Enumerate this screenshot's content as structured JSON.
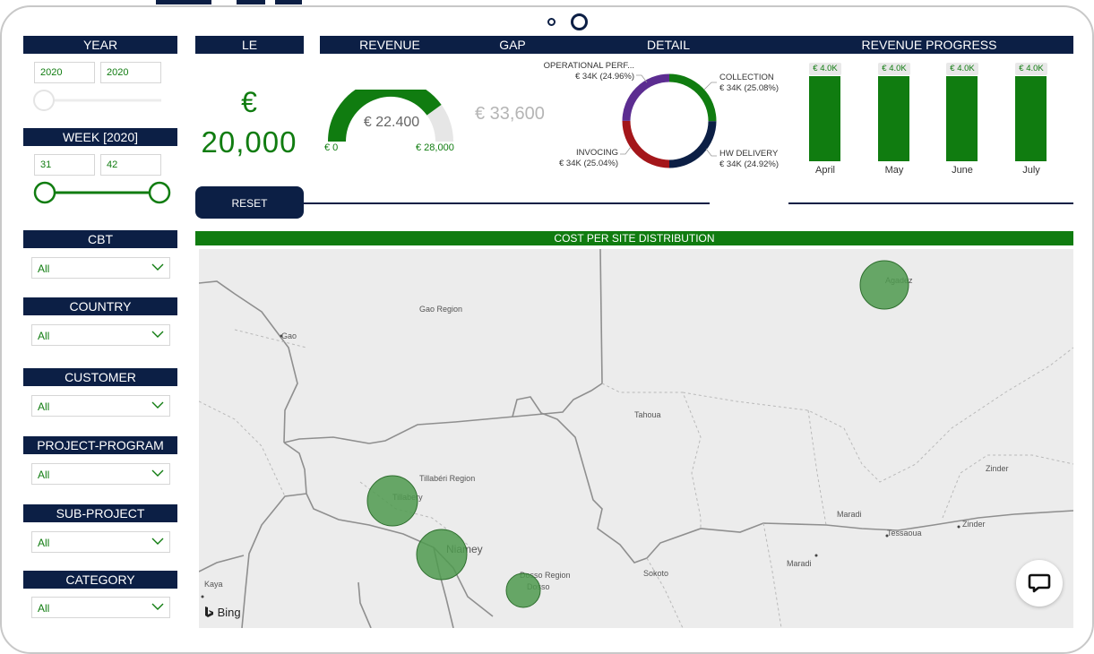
{
  "filters": {
    "year": {
      "title": "YEAR",
      "from": "2020",
      "to": "2020"
    },
    "week": {
      "title": "WEEK [2020]",
      "from": "31",
      "to": "42"
    },
    "reset_label": "RESET",
    "slicers": [
      {
        "title": "CBT",
        "value": "All"
      },
      {
        "title": "COUNTRY",
        "value": "All"
      },
      {
        "title": "CUSTOMER",
        "value": "All"
      },
      {
        "title": "PROJECT-PROGRAM",
        "value": "All"
      },
      {
        "title": "SUB-PROJECT",
        "value": "All"
      },
      {
        "title": "CATEGORY",
        "value": "All"
      }
    ]
  },
  "kpis": {
    "le": {
      "title": "LE",
      "symbol": "€",
      "value": "20,000"
    },
    "revenue": {
      "title": "REVENUE",
      "value": "€ 22.400",
      "min": "€ 0",
      "max": "€ 28,000",
      "fraction": 0.8
    },
    "gap": {
      "title": "GAP",
      "value": "€ 33,600"
    }
  },
  "detail": {
    "title": "DETAIL",
    "segments": [
      {
        "name": "COLLECTION",
        "value": "€ 34K (25.08%)",
        "pct": 25.08,
        "color": "#107c10"
      },
      {
        "name": "HW DELIVERY",
        "value": "€ 34K (24.92%)",
        "pct": 24.92,
        "color": "#0c1f45"
      },
      {
        "name": "INVOCING",
        "value": "€ 34K (25.04%)",
        "pct": 25.04,
        "color": "#a4161a"
      },
      {
        "name": "OPERATIONAL PERF...",
        "value": "€ 34K (24.96%)",
        "pct": 24.96,
        "color": "#5c2d91"
      }
    ]
  },
  "chart_data": {
    "type": "bar",
    "title": "REVENUE PROGRESS",
    "categories": [
      "April",
      "May",
      "June",
      "July"
    ],
    "values": [
      4000,
      4000,
      4000,
      4000
    ],
    "data_labels": [
      "€ 4.0K",
      "€ 4.0K",
      "€ 4.0K",
      "€ 4.0K"
    ],
    "color": "#107c10"
  },
  "map": {
    "title": "COST PER SITE DISTRIBUTION",
    "attribution": "Bing",
    "labels": [
      "Gao Region",
      "Gao",
      "Tahoua",
      "Tillabéri Region",
      "Tillabery",
      "Niamey",
      "Dosso Region",
      "Dosso",
      "Sokoto",
      "Maradi",
      "Tessaoua",
      "Zinder",
      "Zinder",
      "Maradi",
      "Agadez",
      "Kaya"
    ],
    "bubbles": [
      "Agadez",
      "Tillabery",
      "Niamey",
      "Dosso"
    ]
  },
  "icons": {
    "chevron": "chevron-down-icon",
    "chat": "chat-icon",
    "bing": "bing-logo-icon"
  }
}
